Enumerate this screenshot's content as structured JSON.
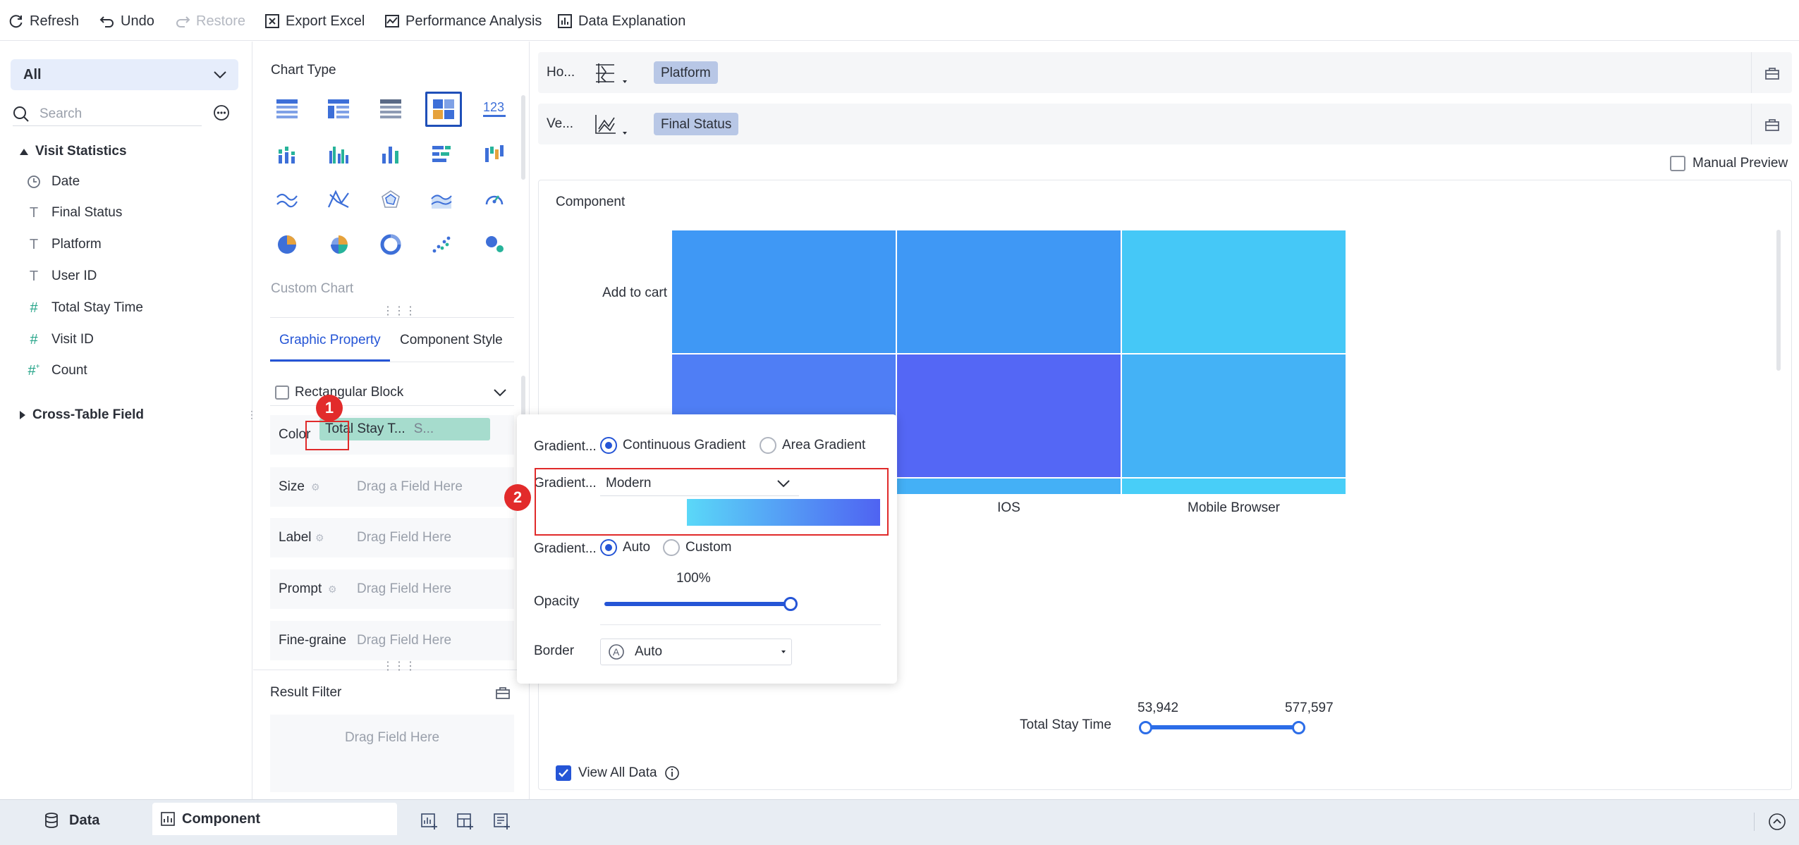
{
  "toolbar": {
    "refresh": "Refresh",
    "undo": "Undo",
    "restore": "Restore",
    "export_excel": "Export Excel",
    "performance_analysis": "Performance Analysis",
    "data_explanation": "Data Explanation"
  },
  "left": {
    "scope_select": "All",
    "search_placeholder": "Search",
    "group_visit": "Visit Statistics",
    "fields": [
      {
        "label": "Date",
        "icon": "clock-icon"
      },
      {
        "label": "Final Status",
        "icon": "text-type-icon"
      },
      {
        "label": "Platform",
        "icon": "text-type-icon"
      },
      {
        "label": "User ID",
        "icon": "text-type-icon"
      },
      {
        "label": "Total Stay Time",
        "icon": "number-type-icon"
      },
      {
        "label": "Visit ID",
        "icon": "number-type-icon"
      },
      {
        "label": "Count",
        "icon": "count-type-icon"
      }
    ],
    "group_cross": "Cross-Table Field"
  },
  "middle": {
    "chart_type_title": "Chart Type",
    "custom_chart": "Custom Chart",
    "tabs": {
      "graphic": "Graphic Property",
      "style": "Component Style"
    },
    "shape_select": "Rectangular Block",
    "props": {
      "color": "Color",
      "color_field": "Total Stay T...",
      "color_field_suffix": "S...",
      "size": "Size",
      "size_ph": "Drag a Field Here",
      "label": "Label",
      "label_ph": "Drag Field Here",
      "prompt": "Prompt",
      "prompt_ph": "Drag Field Here",
      "fine": "Fine-graine",
      "fine_ph": "Drag Field Here"
    },
    "result_filter": "Result Filter",
    "result_filter_ph": "Drag Field Here"
  },
  "right": {
    "horizontal_label": "Ho...",
    "horizontal_field": "Platform",
    "vertical_label": "Ve...",
    "vertical_field": "Final Status",
    "manual_preview": "Manual Preview",
    "component_title": "Component",
    "view_all_data": "View All Data"
  },
  "chart_data": {
    "type": "heatmap",
    "title": "Component",
    "categories_x": [
      "",
      "IOS",
      "Mobile Browser"
    ],
    "categories_y": [
      "Add to cart",
      "",
      ""
    ],
    "colors": [
      [
        "#3f98f5",
        "#3f98f5",
        "#45c8f7"
      ],
      [
        "#4f7ef5",
        "#5467f5",
        "#44b2f6"
      ],
      [
        "#44b0f6",
        "#44b0f6",
        "#48cef8"
      ]
    ],
    "legend": {
      "label": "Total Stay Time",
      "min": "53,942",
      "max": "577,597",
      "min_value": 53942,
      "max_value": 577597
    }
  },
  "popup": {
    "gradient_type_label": "Gradient...",
    "continuous": "Continuous Gradient",
    "area": "Area Gradient",
    "gradient_scheme_label": "Gradient...",
    "scheme": "Modern",
    "gradient_range_label": "Gradient...",
    "auto": "Auto",
    "custom": "Custom",
    "opacity_value": "100%",
    "opacity_fraction": 1.0,
    "opacity_label": "Opacity",
    "border_label": "Border",
    "border_value": "Auto",
    "gradient_start": "#5ad8f8",
    "gradient_end": "#4f63f2"
  },
  "annotations": {
    "step1": "1",
    "step2": "2"
  },
  "bottom": {
    "data_tab": "Data",
    "component_tab": "Component"
  },
  "colors": {
    "accent": "#2555d6",
    "highlight": "#e02a2a"
  }
}
